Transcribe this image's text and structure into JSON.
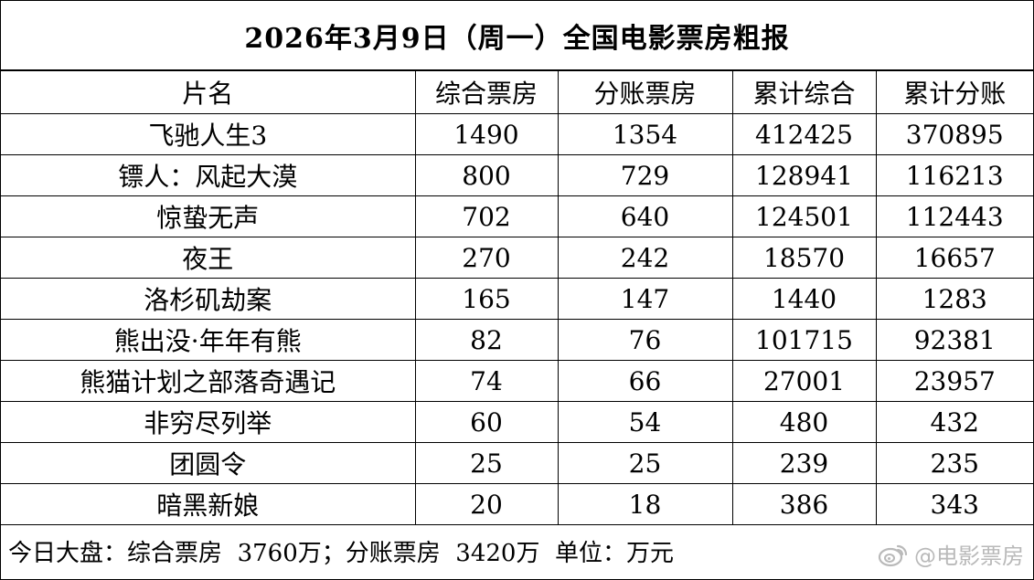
{
  "title": "2026年3月9日（周一）全国电影票房粗报",
  "columns": [
    "片名",
    "综合票房",
    "分账票房",
    "累计综合",
    "累计分账"
  ],
  "rows": [
    {
      "name": "飞驰人生3",
      "gross": "1490",
      "split": "1354",
      "cum_gross": "412425",
      "cum_split": "370895"
    },
    {
      "name": "镖人：风起大漠",
      "gross": "800",
      "split": "729",
      "cum_gross": "128941",
      "cum_split": "116213"
    },
    {
      "name": "惊蛰无声",
      "gross": "702",
      "split": "640",
      "cum_gross": "124501",
      "cum_split": "112443"
    },
    {
      "name": "夜王",
      "gross": "270",
      "split": "242",
      "cum_gross": "18570",
      "cum_split": "16657"
    },
    {
      "name": "洛杉矶劫案",
      "gross": "165",
      "split": "147",
      "cum_gross": "1440",
      "cum_split": "1283"
    },
    {
      "name": "熊出没·年年有熊",
      "gross": "82",
      "split": "76",
      "cum_gross": "101715",
      "cum_split": "92381"
    },
    {
      "name": "熊猫计划之部落奇遇记",
      "gross": "74",
      "split": "66",
      "cum_gross": "27001",
      "cum_split": "23957"
    },
    {
      "name": "非穷尽列举",
      "gross": "60",
      "split": "54",
      "cum_gross": "480",
      "cum_split": "432"
    },
    {
      "name": "团圆令",
      "gross": "25",
      "split": "25",
      "cum_gross": "239",
      "cum_split": "235"
    },
    {
      "name": "暗黑新娘",
      "gross": "20",
      "split": "18",
      "cum_gross": "386",
      "cum_split": "343"
    }
  ],
  "footer": {
    "label": "今日大盘：",
    "gross_label": "综合票房",
    "gross_value": "3760万；",
    "split_label": "分账票房",
    "split_value": "3420万",
    "unit_label": "单位：",
    "unit_value": "万元"
  },
  "watermark": {
    "icon": "weibo-icon",
    "text": "@电影票房",
    "color": "#b9b9b9"
  }
}
